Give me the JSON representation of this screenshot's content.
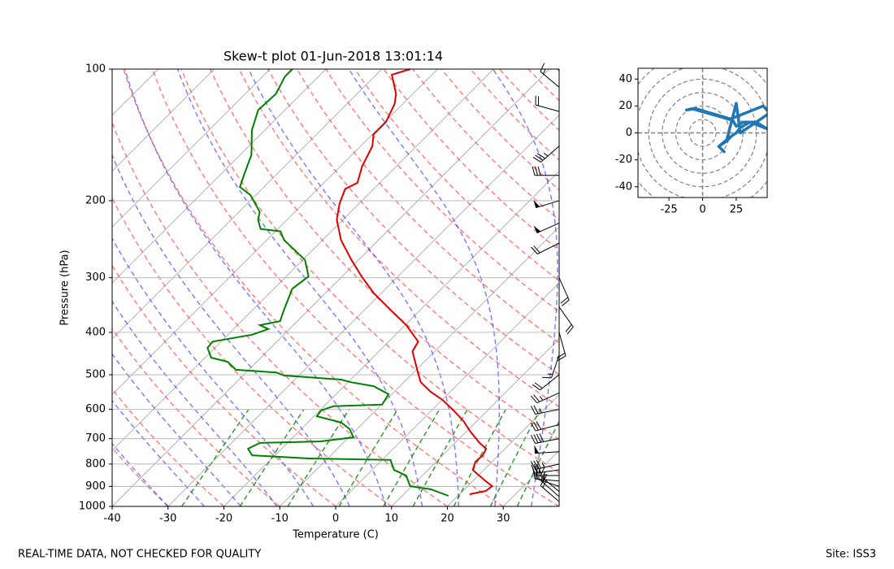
{
  "chart_data": [
    {
      "type": "skewt",
      "title": "Skew-t plot 01-Jun-2018 13:01:14",
      "x_label": "Temperature (C)",
      "y_label": "Pressure (hPa)",
      "xlim": [
        -40,
        40
      ],
      "xticks": [
        -40,
        -30,
        -20,
        -10,
        0,
        10,
        20,
        30
      ],
      "ylim": [
        1000,
        100
      ],
      "yticks": [
        1000,
        900,
        800,
        700,
        600,
        500,
        400,
        300,
        200,
        100
      ],
      "yscale": "log",
      "skew_angle": 45,
      "grid": true,
      "series": [
        {
          "color": "#e00000",
          "pressure": [
            938,
            922,
            899,
            876,
            846,
            825,
            790,
            764,
            738,
            716,
            672,
            638,
            603,
            571,
            547,
            520,
            498,
            473,
            442,
            420,
            385,
            354,
            325,
            298,
            273,
            246,
            221,
            203,
            188,
            182,
            167,
            150,
            141,
            132,
            120,
            114,
            103,
            100
          ],
          "values": [
            21.8,
            24.1,
            24.4,
            22.4,
            19.8,
            18.0,
            17.0,
            17.2,
            16.6,
            14.4,
            10.5,
            7.6,
            3.9,
            0.1,
            -3.5,
            -7.0,
            -8.9,
            -11.1,
            -14.0,
            -14.7,
            -19.8,
            -25.6,
            -31.4,
            -36.5,
            -41.3,
            -46.7,
            -51.1,
            -53.5,
            -55.1,
            -54.0,
            -56.1,
            -57.9,
            -59.8,
            -59.8,
            -61.5,
            -63.0,
            -67.2,
            -64.9
          ]
        },
        {
          "color": "#008000",
          "pressure": [
            946,
            914,
            899,
            850,
            825,
            783,
            777,
            764,
            738,
            716,
            710,
            695,
            666,
            643,
            622,
            603,
            590,
            585,
            554,
            531,
            520,
            513,
            502,
            494,
            487,
            467,
            457,
            434,
            420,
            405,
            393,
            385,
            377,
            354,
            318,
            298,
            273,
            246,
            235,
            232,
            221,
            212,
            194,
            186,
            174,
            157,
            138,
            124,
            114,
            104,
            100
          ],
          "values": [
            18.3,
            14.0,
            9.7,
            7.1,
            3.9,
            1.5,
            -13.4,
            -24.1,
            -26.0,
            -24.9,
            -14.3,
            -9.2,
            -11.3,
            -14.0,
            -19.5,
            -19.8,
            -18.3,
            -9.9,
            -10.6,
            -14.7,
            -19.5,
            -21.7,
            -32.6,
            -34.6,
            -42.3,
            -45.2,
            -48.9,
            -51.3,
            -51.5,
            -45.7,
            -43.8,
            -46.0,
            -43.1,
            -44.5,
            -46.7,
            -46.0,
            -49.6,
            -56.9,
            -59.1,
            -63.1,
            -65.2,
            -66.3,
            -71.0,
            -74.3,
            -75.8,
            -78.0,
            -82.3,
            -84.8,
            -84.5,
            -86.0,
            -86.0
          ]
        }
      ],
      "wind": {
        "pressure": [
          975,
          950,
          925,
          900,
          875,
          850,
          825,
          800,
          750,
          700,
          650,
          600,
          550,
          500,
          450,
          400,
          350,
          300,
          250,
          225,
          200,
          175,
          150,
          125,
          110
        ],
        "u": [
          14,
          16,
          12,
          18,
          22,
          25,
          28,
          35,
          48,
          40,
          30,
          25,
          22,
          15,
          5,
          -5,
          -12,
          -8,
          20,
          45,
          50,
          28,
          25,
          18,
          12
        ],
        "v": [
          -12,
          -14,
          -10,
          -6,
          -2,
          0,
          4,
          8,
          3,
          8,
          8,
          5,
          10,
          12,
          15,
          18,
          17,
          18,
          10,
          20,
          15,
          0,
          22,
          -5,
          -10
        ]
      }
    },
    {
      "type": "hodograph",
      "color": "#1f77b4",
      "xlim": [
        -48,
        48
      ],
      "ylim": [
        -48,
        48
      ],
      "xticks": [
        -25,
        0,
        25
      ],
      "yticks": [
        -40,
        -20,
        0,
        20,
        40
      ]
    }
  ],
  "footer": {
    "left": "REAL-TIME DATA, NOT CHECKED FOR QUALITY",
    "right": "Site: ISS3"
  }
}
